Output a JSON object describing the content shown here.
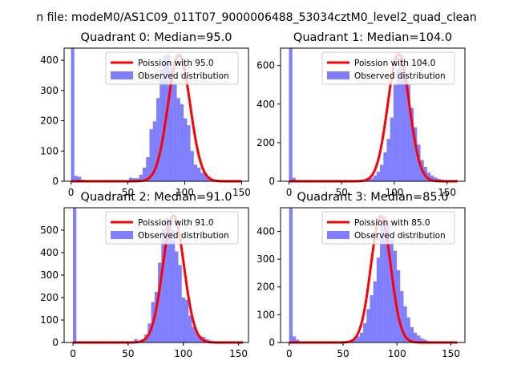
{
  "figure": {
    "suptitle": "n file: modeM0/AS1C09_011T07_9000006488_53034cztM0_level2_quad_clean"
  },
  "colors": {
    "hist": "#0000ff",
    "hist_opacity": 0.5,
    "poisson": "#ff0000"
  },
  "chart_data": [
    {
      "type": "bar",
      "title": "Quadrant 0: Median=95.0",
      "xlim": [
        -6,
        156
      ],
      "ylim": [
        0,
        440
      ],
      "xticks": [
        0,
        50,
        100,
        150
      ],
      "yticks": [
        0,
        100,
        200,
        300,
        400
      ],
      "hist_bins": 50,
      "hist_range": [
        0,
        150
      ],
      "hist_values": [
        440,
        18,
        15,
        5,
        4,
        3,
        3,
        2,
        3,
        2,
        3,
        3,
        3,
        3,
        3,
        3,
        3,
        12,
        10,
        10,
        22,
        45,
        80,
        172,
        198,
        275,
        370,
        415,
        420,
        375,
        325,
        275,
        255,
        208,
        185,
        100,
        55,
        45,
        28,
        25,
        15,
        5,
        3,
        2,
        2,
        1,
        1,
        1,
        1,
        1
      ],
      "poisson_mean": 95.0,
      "poisson_peak": 418,
      "legend": {
        "location": "top-right",
        "entries": [
          "Poission with 95.0",
          "Observed distribution"
        ]
      }
    },
    {
      "type": "bar",
      "title": "Quadrant 1: Median=104.0",
      "xlim": [
        -8,
        167
      ],
      "ylim": [
        0,
        690
      ],
      "xticks": [
        0,
        50,
        100,
        150
      ],
      "yticks": [
        0,
        200,
        400,
        600
      ],
      "hist_bins": 50,
      "hist_range": [
        0,
        160
      ],
      "hist_values": [
        690,
        18,
        4,
        3,
        3,
        3,
        3,
        3,
        3,
        3,
        3,
        3,
        3,
        3,
        3,
        3,
        3,
        3,
        3,
        3,
        3,
        3,
        5,
        8,
        15,
        30,
        50,
        85,
        150,
        220,
        330,
        500,
        585,
        655,
        545,
        500,
        380,
        280,
        190,
        110,
        75,
        45,
        30,
        20,
        12,
        8,
        6,
        5,
        4,
        3
      ],
      "poisson_mean": 104.0,
      "poisson_peak": 660,
      "legend": {
        "location": "top-right",
        "entries": [
          "Poission with 104.0",
          "Observed distribution"
        ]
      }
    },
    {
      "type": "bar",
      "title": "Quadrant 2: Median=91.0",
      "xlim": [
        -8,
        159
      ],
      "ylim": [
        0,
        600
      ],
      "xticks": [
        0,
        50,
        100,
        150
      ],
      "yticks": [
        0,
        100,
        200,
        300,
        400,
        500
      ],
      "hist_bins": 50,
      "hist_range": [
        0,
        154
      ],
      "hist_values": [
        600,
        3,
        3,
        3,
        3,
        3,
        3,
        3,
        3,
        3,
        3,
        3,
        3,
        3,
        3,
        3,
        3,
        3,
        15,
        8,
        15,
        35,
        85,
        180,
        225,
        355,
        505,
        555,
        555,
        500,
        405,
        345,
        200,
        190,
        120,
        70,
        45,
        30,
        25,
        15,
        8,
        5,
        3,
        3,
        3,
        2,
        2,
        2,
        1,
        1
      ],
      "poisson_mean": 91.0,
      "poisson_peak": 565,
      "legend": {
        "location": "top-right",
        "entries": [
          "Poission with 91.0",
          "Observed distribution"
        ]
      }
    },
    {
      "type": "bar",
      "title": "Quadrant 3: Median=85.0",
      "xlim": [
        -8,
        163
      ],
      "ylim": [
        0,
        485
      ],
      "xticks": [
        0,
        50,
        100,
        150
      ],
      "yticks": [
        0,
        100,
        200,
        300,
        400
      ],
      "hist_bins": 50,
      "hist_range": [
        0,
        156
      ],
      "hist_values": [
        485,
        22,
        10,
        3,
        3,
        3,
        3,
        3,
        3,
        3,
        3,
        3,
        3,
        3,
        3,
        3,
        3,
        5,
        8,
        12,
        22,
        35,
        70,
        120,
        170,
        220,
        305,
        420,
        455,
        435,
        370,
        330,
        260,
        185,
        130,
        90,
        55,
        35,
        25,
        15,
        10,
        5,
        3,
        2,
        2,
        1,
        1,
        1,
        1,
        1
      ],
      "poisson_mean": 85.0,
      "poisson_peak": 455,
      "legend": {
        "location": "top-right",
        "entries": [
          "Poission with 85.0",
          "Observed distribution"
        ]
      }
    }
  ]
}
